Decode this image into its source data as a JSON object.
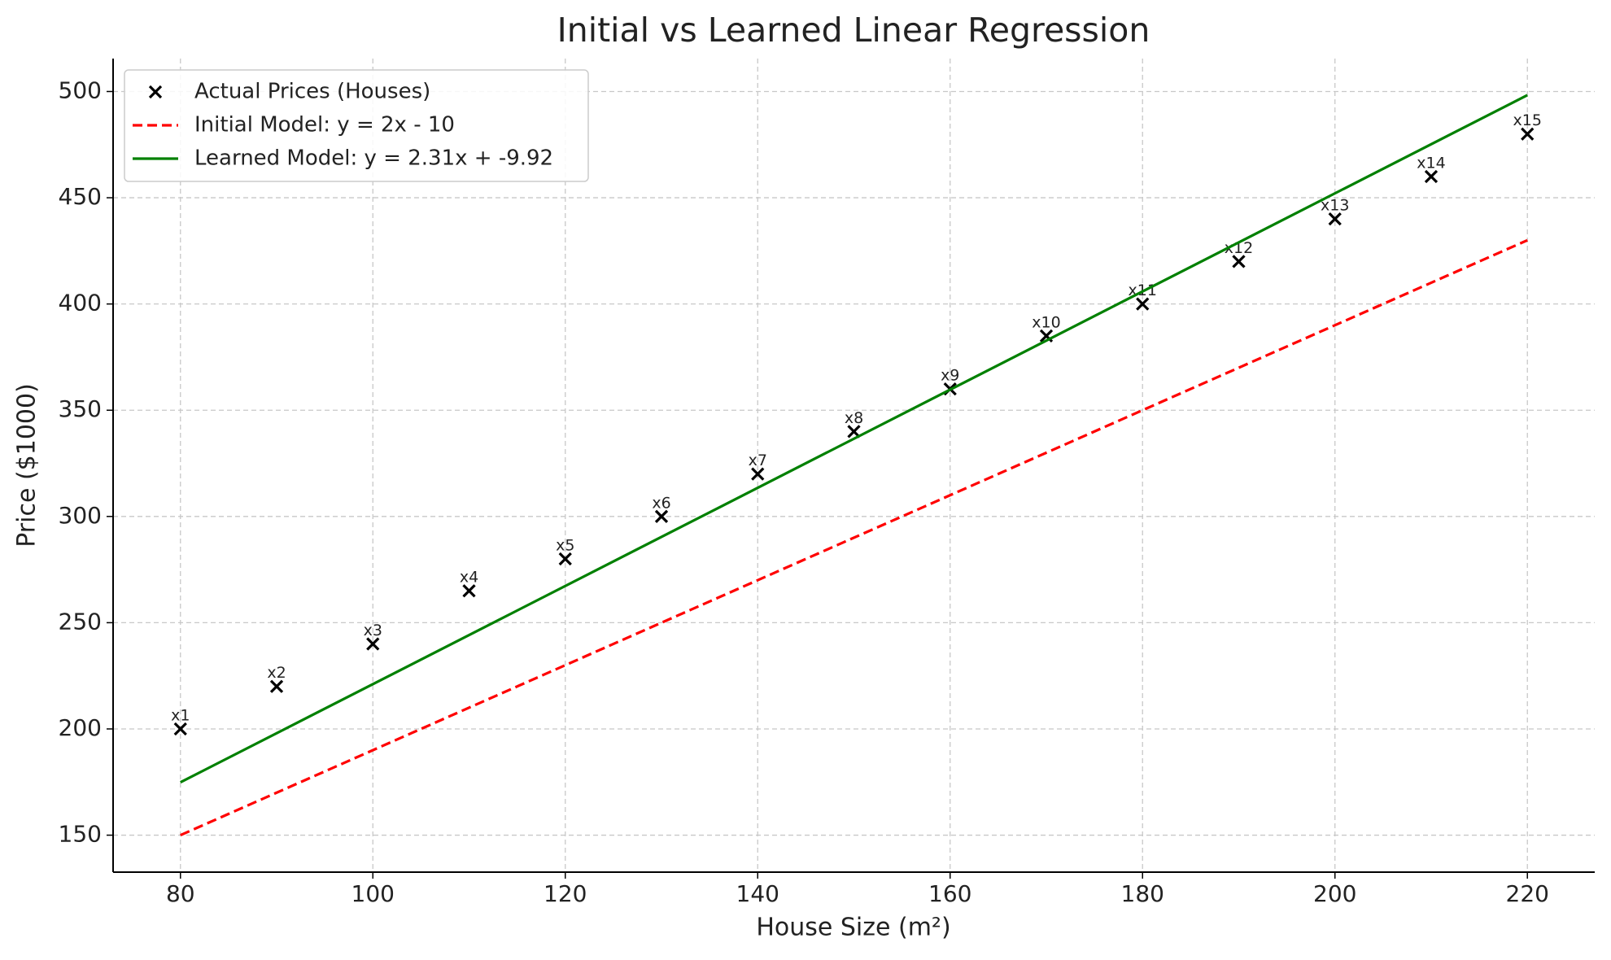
{
  "chart_data": {
    "type": "scatter",
    "title": "Initial vs Learned Linear Regression",
    "x_label": "House Size (m²)",
    "y_label": "Price ($1000)",
    "xlim": [
      73,
      227
    ],
    "ylim": [
      132.6,
      515.5
    ],
    "xticks": [
      80,
      100,
      120,
      140,
      160,
      180,
      200,
      220
    ],
    "yticks": [
      150,
      200,
      250,
      300,
      350,
      400,
      450,
      500
    ],
    "grid": true,
    "legend": "upper left",
    "series": [
      {
        "name": "Actual Prices (Houses)",
        "type": "scatter",
        "color": "#000000",
        "x": [
          80,
          90,
          100,
          110,
          120,
          130,
          140,
          150,
          160,
          170,
          180,
          190,
          200,
          210,
          220
        ],
        "values": [
          200,
          220,
          240,
          265,
          280,
          300,
          320,
          340,
          360,
          385,
          400,
          420,
          440,
          460,
          480
        ],
        "point_labels": [
          "x1",
          "x2",
          "x3",
          "x4",
          "x5",
          "x6",
          "x7",
          "x8",
          "x9",
          "x10",
          "x11",
          "x12",
          "x13",
          "x14",
          "x15"
        ]
      },
      {
        "name": "Initial Model: y = 2x - 10",
        "type": "line",
        "dashed": true,
        "color": "#ff0000",
        "x": [
          80,
          220
        ],
        "values": [
          150,
          430
        ]
      },
      {
        "name": "Learned Model: y = 2.31x + -9.92",
        "type": "line",
        "dashed": false,
        "color": "#008000",
        "x": [
          80,
          220
        ],
        "values": [
          174.88,
          498.28
        ]
      }
    ]
  }
}
